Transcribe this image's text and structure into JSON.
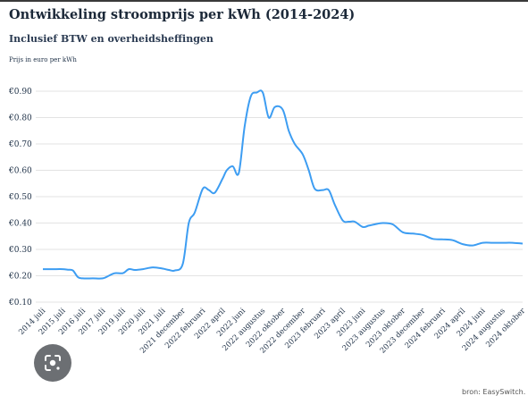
{
  "chart_data": {
    "type": "line",
    "title": "Ontwikkeling stroomprijs per kWh (2014-2024)",
    "subtitle": "Inclusief BTW en overheidsheffingen",
    "ylabel": "Prijs in euro per kWh",
    "source": "bron: EasySwitch.",
    "ylim": [
      0.1,
      0.9
    ],
    "yticks": [
      0.1,
      0.2,
      0.3,
      0.4,
      0.5,
      0.6,
      0.7,
      0.8,
      0.9
    ],
    "ytick_labels": [
      "€0.10",
      "€0.20",
      "€0.30",
      "€0.40",
      "€0.50",
      "€0.60",
      "€0.70",
      "€0.80",
      "€0.90"
    ],
    "grid": true,
    "legend": "none",
    "line_color": "#3d9df2",
    "categories": [
      "2014 juli",
      "2015 juli",
      "2016 juli",
      "2017 juli",
      "2019 juli",
      "2020 juli",
      "2021 juli",
      "2021 december",
      "2022 februari",
      "2022 april",
      "2022 juni",
      "2022 augustus",
      "2022 oktober",
      "2022 december",
      "2023 februari",
      "2023 april",
      "2023 juni",
      "2023 augustus",
      "2023 oktober",
      "2023 december",
      "2024 februari",
      "2024 april",
      "2024 juni",
      "2024 augustus",
      "2024 oktober"
    ],
    "series": [
      {
        "x": [
          0,
          0.5,
          1,
          1.25,
          1.5,
          1.75,
          2,
          2.5,
          3,
          3.3,
          3.6,
          4,
          4.3,
          4.6,
          5,
          5.5,
          6,
          6.3,
          6.6,
          7,
          7.3,
          7.6,
          8,
          8.3,
          8.6,
          9,
          9.2,
          9.5,
          9.8,
          10.1,
          10.4,
          10.7,
          11,
          11.3,
          11.6,
          12,
          12.3,
          12.6,
          13,
          13.3,
          13.6,
          14,
          14.3,
          14.6,
          15,
          15.3,
          15.6,
          16,
          16.3,
          16.6,
          17,
          17.5,
          18,
          18.5,
          19,
          19.5,
          20,
          20.5,
          21,
          21.5,
          22,
          22.5,
          23,
          23.5,
          24
        ],
        "values": [
          0.225,
          0.225,
          0.225,
          0.223,
          0.22,
          0.195,
          0.19,
          0.19,
          0.19,
          0.2,
          0.21,
          0.21,
          0.225,
          0.222,
          0.225,
          0.232,
          0.227,
          0.222,
          0.22,
          0.245,
          0.4,
          0.44,
          0.53,
          0.525,
          0.515,
          0.57,
          0.6,
          0.615,
          0.59,
          0.77,
          0.88,
          0.895,
          0.895,
          0.8,
          0.84,
          0.83,
          0.75,
          0.7,
          0.66,
          0.6,
          0.53,
          0.525,
          0.525,
          0.47,
          0.41,
          0.405,
          0.405,
          0.385,
          0.39,
          0.395,
          0.4,
          0.395,
          0.365,
          0.36,
          0.355,
          0.34,
          0.338,
          0.335,
          0.32,
          0.315,
          0.325,
          0.325,
          0.325,
          0.325,
          0.322
        ]
      }
    ]
  }
}
